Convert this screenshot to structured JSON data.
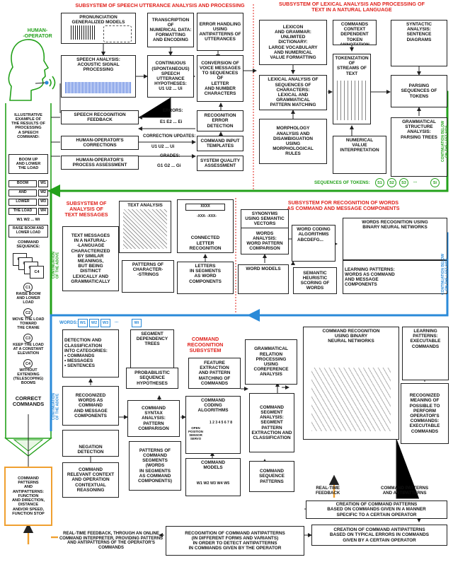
{
  "titles": {
    "speech": "SUBSYSTEM OF SPEECH UTTERANCE ANALYSIS AND PROCESSING",
    "lexical": "SUBSYSTEM OF LEXICAL ANALYSIS AND PROCESSING OF\nTEXT IN A NATURAL LANGUAGE",
    "text": "SUBSYSTEM OF\nANALYSIS OF\nTEXT MESSAGES",
    "words": "SUBSYSTEM FOR RECOGNITION OF WORDS\nAS COMMAND AND MESSAGE COMPONENTS",
    "command": "COMMAND\nRECOGNITION\nSUBSYSTEM"
  },
  "operator": {
    "label": "HUMAN-\n-OPERATOR",
    "example": "ILLUSTRATIVE\nEXAMPLE OF\nTHE RESULTS OF\nPROCESSING\nA SPEECH\nCOMMAND:",
    "example_cmd": "BOOM UP\nAND LOWER\nTHE LOAD",
    "words_boom": "BOOM",
    "words_and": "AND",
    "words_lower": "LOWER",
    "words_the_load": "THE LOAD",
    "w1": "W1",
    "w2": "W2",
    "w3": "W3",
    "w4": "W4",
    "wseq": "W1 W2 ... Wi",
    "raise_cmd": "RAISE BOOM AND LOWER LOAD",
    "cmd_seq": "COMMAND\nSEQUENCE:",
    "c1": "C1",
    "c2": "C2",
    "c3": "C3",
    "c4": "C4",
    "c1_text": "RAISE BOOM\nAND LOWER\nLOAD",
    "c2_text": "MOVE THE LOAD\nTOWARD\nTHE CRANE",
    "c3_text": "KEEP THE LOAD\nAT A CONSTANT\nELEVATION",
    "c4_text": "WITHOUT\nEXTENDING\n(TELESCOPING)\nBOOMS",
    "correct": "CORRECT\nCOMMANDS",
    "patterns": "COMMAND\nPATTERNS\nAND\nANTIPATTERNS:\nFUNCTION\nAND DIRECTION,\nDISTANCE\nAND/OR SPEED,\nFUNCTION STOP"
  },
  "speech": {
    "pron": "PRONUNCIATION\nGENERALIZED MODELS",
    "transcription": "TRANSCRIPTION OF\nNUMERICAL DATA:\nFORMATTING\nAND ENCODING",
    "error_handling": "ERROR HANDLING\nUSING\nANTIPATTERNS OF\nUTTERANCES",
    "acoustic": "SPEECH ANALYSIS:\nACOUSTIC SIGNAL\nPROCESSING",
    "continuous": "CONTINUOUS\n(SPONTANEOUS)\nSPEECH\nUTTERANCE\nHYPOTHESES:\nU1 U2 ... Ui",
    "conversion": "CONVERSION OF\nVOICE MESSAGES\nTO SEQUENCES OF\nLETTER\nAND NUMBER\nCHARACTERS",
    "feedback": "SPEECH RECOGNITION\nFEEDBACK",
    "errors": "ERRORS:",
    "errors_e": "E1 E2 ... Ei",
    "error_detection": "RECOGNITION\nERROR DETECTION",
    "corrections": "HUMAN-OPERATOR'S\nCORRECTIONS",
    "correction_updates": "CORRECTION UPDATES:",
    "correction_u": "U1 U2 ... Ui",
    "templates": "COMMAND INPUT\nTEMPLATES",
    "assessment": "HUMAN-OPERATOR'S\nPROCESS ASSESSMENT",
    "grades": "GRADES:",
    "grades_g": "G1 G2 ... Gi",
    "quality": "SYSTEM QUALITY\nASSESSMENT"
  },
  "lexical": {
    "lexicon": "LEXICON\nAND GRAMMAR:\nUNLIMITED\nDICTIONARY:\nLARGE VOCABULARY\nAND NUMERICAL\nVALUE FORMATTING",
    "context": "COMMANDS\nCONTEXT\nDEPENDENT\nTOKEN ANNOTATION",
    "syntactic": "SYNTACTIC\nANALYSIS:\nSENTENCE\nDIAGRAMS",
    "lexical_analysis": "LEXICAL ANALYSIS OF\nSEQUENCES OF\nCHARACTERS:\nLEXICAL AND\nGRAMMATICAL\nPATTERN MATCHING",
    "tokenization": "TOKENIZATION OF\nSTREAMS OF\nTEXT",
    "parsing": "PARSING\nSEQUENCES OF\nTOKENS",
    "grammatical": "GRAMMATICAL\nSTRUCTURE\nANALYSIS:\nPARSING TREES",
    "morphology": "MORPHOLOGY\nANALYSIS AND\nDISAMBIGUATION\nUSING\nMORPHOLOGICAL\nRULES",
    "numerical": "NUMERICAL\nVALUE\nINTERPRETATION",
    "tokens_label": "SEQUENCES OF TOKENS:",
    "s1": "S1",
    "s2": "S2",
    "s3": "S3",
    "si": "Si",
    "dots": "...",
    "cont_below": "CONTINUATION BELOW\nON THE LEFT SIDE",
    "cont_above": "CONTINUATION\nOF THE ABOVE"
  },
  "text": {
    "text_analysis": "TEXT ANALYSIS",
    "messages": "TEXT MESSAGES\nIN A NATURAL-\n-LANGUAGE\nCHARACTERIZED\nBY SIMILAR\nMEANINGS,\nBUT BEING\nDISTINCT\nLEXICALLY AND\nGRAMMATICALLY",
    "connected": "CONNECTED\nLETTER\nRECOGNITION",
    "patterns_strings": "PATTERNS OF\nCHARACTER-\n-STRINGS",
    "letters": "LETTERS\nIN SEGMENTS\nAS WORD\nCOMPONENTS",
    "xxxx": "XXXX",
    "xxx": "-XXX- -XXX-"
  },
  "words": {
    "synonyms": "SYNONYMS\nUSING SEMANTIC\nVECTORS",
    "coding": "WORD CODING\nALGORITHMS",
    "coding_sample": "ABCDEFG...",
    "nn": "WORDS RECOGNITION USING\nBINARY NEURAL NETWORKS",
    "analysis": "WORDS\nANALYSIS:\nWORD PATTERN\nCOMPARISON",
    "models": "WORD MODELS",
    "semantic": "SEMANTIC\nHEURISTIC\nSCORING OF\nWORDS",
    "learning": "LEARNING PATTERNS:\nWORDS AS COMMAND\nAND MESSAGE\nCOMPONENTS",
    "words_label": "WORDS:",
    "w1": "W1",
    "w2": "W2",
    "w3": "W3",
    "wi": "Wi",
    "dots": "..."
  },
  "command": {
    "detection": "DETECTION AND\nCLASSIFICATION\nINTO CATEGORIES:\n• COMMANDS\n• MESSAGES\n• SENTENCES",
    "dependency": "SEGMENT\nDEPENDENCY\nTREES",
    "feature": "FEATURE\nEXTRACTION\nAND PATTERN\nMATCHING OF\nCOMMANDS",
    "grammatical": "GRAMMATICAL\nRELATION\nPROCESSING\nUSING\nCOREFERENCE\nANALYSIS",
    "nn": "COMMAND RECOGNITION\nUSING BINARY\nNEURAL NETWORKS",
    "learning": "LEARNING\nPATTERNS:\nEXECUTABLE\nCOMMANDS",
    "probabilistic": "PROBABILISTIC\nSEQUENCE\nHYPOTHESES",
    "recognized_words": "RECOGNIZED\nWORDS AS\nCOMMAND\nAND MESSAGE\nCOMPONENTS",
    "syntax": "COMMAND\nSYNTAX\nANALYSIS:\nPATTERN\nCOMPARISON",
    "coding": "COMMAND\nCODING\nALGORITHMS",
    "segment_analysis": "COMMAND\nSEGMENT\nANALYSIS:\nSEGMENT\nPATTERN\nEXTRACTION AND\nCLASSIFICATION",
    "recognized_meaning": "RECOGNIZED\nMEANING OF\nPOSSIBLE TO\nPERFORM\nOPERATOR'S\nCOMMANDS:\nEXECUTABLE\nCOMMANDS",
    "negation": "NEGATION\nDETECTION",
    "patterns_segments": "PATTERNS OF\nCOMMAND\nSEGMENTS\n(WORDS\nIN SEGMENTS\nAS COMMAND\nCOMPONENTS)",
    "models": "COMMAND\nMODELS",
    "sequence_patterns": "COMMAND\nSEQUENCE\nPATTERNS",
    "context": "COMMAND\nRELEVANT CONTEXT\nAND OPERATION\nCONTEXTUAL\nREASONING",
    "open": "OPEN\nPOSITION\nSENSOR\nSERVO",
    "digits": "1 2 3 4 5 6 7 8",
    "wm": "W1 W2 W3 W4 W5"
  },
  "bottom": {
    "realtime": "REAL-TIME\nFEEDBACK",
    "patterns_anti": "COMMAND PATTERNS\nAND ANTIPATTERNS",
    "creation_patterns": "CREATION OF COMMAND PATTERNS\nBASED ON COMMANDS GIVEN IN A MANNER\nSPECIFIC TO A CERTAIN OPERATOR",
    "creation_anti": "CREATION OF COMMAND ANTIPATTERNS\nBASED ON TYPICAL ERRORS IN COMMANDS\nGIVEN BY A CERTAIN OPERATOR",
    "recognition_anti": "RECOGNITION OF COMMAND ANTIPATTERNS\n(IN DIFFERENT FORMS AND VARIANTS)\nIN ORDER TO DETECT ANTIPATTERNS\nIN COMMANDS GIVEN BY THE OPERATOR",
    "online": "REAL-TIME FEEDBACK, THROUGH AN ONLINE\nCOMMAND INTERPRETER, PROVIDING PATTERNS\nAND ANTIPATTERNS OF THE OPERATOR'S COMMANDS"
  },
  "colors": {
    "red": "#e0201a",
    "green": "#23a11a",
    "blue": "#2a8ad8",
    "orange": "#f0a030",
    "line": "#222222"
  }
}
